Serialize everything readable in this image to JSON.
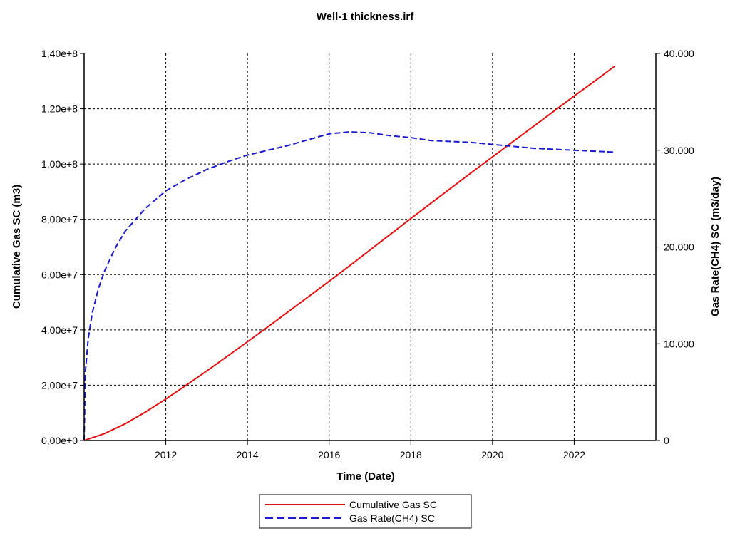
{
  "chart_data": {
    "type": "line",
    "title": "Well-1 thickness.irf",
    "xlabel": "Time (Date)",
    "ylabel_left": "Cumulative Gas SC (m3)",
    "ylabel_right": "Gas Rate(CH4) SC (m3/day)",
    "xlim": [
      2010.0,
      2024.0
    ],
    "ylim_left": [
      0,
      140000000
    ],
    "ylim_right": [
      0,
      40000
    ],
    "x_ticks": [
      2012,
      2014,
      2016,
      2018,
      2020,
      2022
    ],
    "x_tick_labels": [
      "2012",
      "2014",
      "2016",
      "2018",
      "2020",
      "2022"
    ],
    "y_left_ticks": [
      0,
      20000000,
      40000000,
      60000000,
      80000000,
      100000000,
      120000000,
      140000000
    ],
    "y_left_tick_labels": [
      "0,00e+0",
      "2,00e+7",
      "4,00e+7",
      "6,00e+7",
      "8,00e+7",
      "1,00e+8",
      "1,20e+8",
      "1,40e+8"
    ],
    "y_right_ticks": [
      0,
      10000,
      20000,
      30000,
      40000
    ],
    "y_right_tick_labels": [
      "0",
      "10.000",
      "20.000",
      "30.000",
      "40.000"
    ],
    "grid": true,
    "legend_position": "bottom-center",
    "series": [
      {
        "name": "Cumulative Gas SC",
        "axis": "left",
        "color": "#e01010",
        "style": "solid",
        "x": [
          2010.0,
          2010.5,
          2011.0,
          2011.5,
          2012.0,
          2012.5,
          2013.0,
          2013.5,
          2014.0,
          2014.5,
          2015.0,
          2015.5,
          2016.0,
          2016.5,
          2017.0,
          2017.5,
          2018.0,
          2018.5,
          2019.0,
          2019.5,
          2020.0,
          2020.5,
          2021.0,
          2021.5,
          2022.0,
          2022.5,
          2023.0
        ],
        "y": [
          0,
          2500000,
          6000000,
          10300000,
          15000000,
          20000000,
          25100000,
          30400000,
          35700000,
          41100000,
          46600000,
          52100000,
          57600000,
          63200000,
          68900000,
          74600000,
          80300000,
          85900000,
          91500000,
          97100000,
          102600000,
          108100000,
          113600000,
          119100000,
          124600000,
          130000000,
          135500000
        ]
      },
      {
        "name": "Gas Rate(CH4) SC",
        "axis": "right",
        "color": "#1a1acc",
        "style": "dashed",
        "x": [
          2010.0,
          2010.03,
          2010.1,
          2010.2,
          2010.35,
          2010.5,
          2010.75,
          2011.0,
          2011.5,
          2012.0,
          2012.5,
          2013.0,
          2013.5,
          2014.0,
          2014.5,
          2015.0,
          2015.5,
          2016.0,
          2016.5,
          2017.0,
          2017.5,
          2018.0,
          2018.5,
          2019.0,
          2019.5,
          2020.0,
          2020.5,
          2021.0,
          2021.5,
          2022.0,
          2022.5,
          2023.0
        ],
        "y": [
          0,
          7000,
          10500,
          13200,
          15700,
          17500,
          19800,
          21600,
          24000,
          25800,
          27000,
          28000,
          28800,
          29500,
          30000,
          30500,
          31100,
          31700,
          31900,
          31800,
          31500,
          31300,
          31000,
          30900,
          30800,
          30600,
          30400,
          30200,
          30100,
          30000,
          29900,
          29800
        ]
      }
    ]
  }
}
